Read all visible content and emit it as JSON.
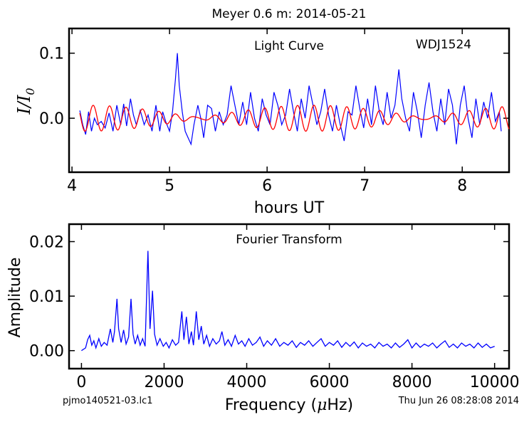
{
  "figure": {
    "title": "Meyer 0.6 m:  2014-05-21",
    "footer_left": "pjmo140521-03.lc1",
    "footer_right": "Thu Jun 26 08:28:08 2014"
  },
  "chart_data": [
    {
      "type": "line",
      "annotations": [
        "Light Curve",
        "WDJ1524"
      ],
      "xlabel": "hours UT",
      "ylabel_main": "I/I",
      "ylabel_sub": "0",
      "xlim": [
        3.97,
        8.48
      ],
      "ylim": [
        -0.083,
        0.138
      ],
      "xticks": [
        4,
        5,
        6,
        7,
        8
      ],
      "xtick_labels": [
        "4",
        "5",
        "6",
        "7",
        "8"
      ],
      "yticks": [
        0.1,
        0.0
      ],
      "ytick_labels": [
        "0.1",
        "0.0"
      ],
      "grid": false,
      "series": [
        {
          "color": "#0000ff",
          "x_start": 4.08,
          "x_end": 8.4,
          "points": [
            [
              4.08,
              0.012
            ],
            [
              4.11,
              -0.01
            ],
            [
              4.14,
              -0.025
            ],
            [
              4.17,
              0.01
            ],
            [
              4.2,
              -0.02
            ],
            [
              4.23,
              0.0
            ],
            [
              4.26,
              -0.01
            ],
            [
              4.3,
              -0.005
            ],
            [
              4.34,
              -0.015
            ],
            [
              4.38,
              0.008
            ],
            [
              4.42,
              -0.02
            ],
            [
              4.46,
              0.02
            ],
            [
              4.5,
              -0.01
            ],
            [
              4.53,
              0.022
            ],
            [
              4.56,
              -0.012
            ],
            [
              4.6,
              0.03
            ],
            [
              4.63,
              0.005
            ],
            [
              4.66,
              -0.01
            ],
            [
              4.7,
              0.012
            ],
            [
              4.74,
              -0.01
            ],
            [
              4.78,
              0.005
            ],
            [
              4.82,
              -0.02
            ],
            [
              4.86,
              0.02
            ],
            [
              4.9,
              -0.02
            ],
            [
              4.93,
              0.01
            ],
            [
              4.96,
              -0.005
            ],
            [
              5.0,
              -0.02
            ],
            [
              5.03,
              0.01
            ],
            [
              5.06,
              0.06
            ],
            [
              5.08,
              0.1
            ],
            [
              5.1,
              0.05
            ],
            [
              5.13,
              0.01
            ],
            [
              5.16,
              -0.02
            ],
            [
              5.19,
              -0.03
            ],
            [
              5.22,
              -0.04
            ],
            [
              5.25,
              -0.01
            ],
            [
              5.29,
              0.02
            ],
            [
              5.32,
              0.0
            ],
            [
              5.35,
              -0.03
            ],
            [
              5.39,
              0.02
            ],
            [
              5.43,
              0.015
            ],
            [
              5.47,
              -0.02
            ],
            [
              5.51,
              0.01
            ],
            [
              5.55,
              -0.01
            ],
            [
              5.59,
              0.005
            ],
            [
              5.63,
              0.05
            ],
            [
              5.67,
              0.02
            ],
            [
              5.71,
              -0.01
            ],
            [
              5.75,
              0.025
            ],
            [
              5.79,
              -0.01
            ],
            [
              5.83,
              0.04
            ],
            [
              5.87,
              0.0
            ],
            [
              5.91,
              -0.02
            ],
            [
              5.95,
              0.03
            ],
            [
              5.99,
              0.005
            ],
            [
              6.03,
              -0.01
            ],
            [
              6.07,
              0.04
            ],
            [
              6.11,
              0.02
            ],
            [
              6.15,
              -0.01
            ],
            [
              6.19,
              0.005
            ],
            [
              6.23,
              0.045
            ],
            [
              6.27,
              0.01
            ],
            [
              6.31,
              -0.02
            ],
            [
              6.35,
              0.03
            ],
            [
              6.39,
              0.0
            ],
            [
              6.43,
              0.05
            ],
            [
              6.47,
              0.02
            ],
            [
              6.51,
              -0.01
            ],
            [
              6.55,
              0.01
            ],
            [
              6.59,
              0.045
            ],
            [
              6.63,
              0.005
            ],
            [
              6.67,
              -0.02
            ],
            [
              6.71,
              0.02
            ],
            [
              6.75,
              -0.01
            ],
            [
              6.79,
              -0.035
            ],
            [
              6.83,
              0.01
            ],
            [
              6.87,
              0.005
            ],
            [
              6.91,
              0.05
            ],
            [
              6.95,
              0.015
            ],
            [
              6.99,
              -0.015
            ],
            [
              7.03,
              0.03
            ],
            [
              7.07,
              -0.01
            ],
            [
              7.11,
              0.05
            ],
            [
              7.15,
              0.01
            ],
            [
              7.19,
              -0.01
            ],
            [
              7.23,
              0.04
            ],
            [
              7.27,
              0.0
            ],
            [
              7.31,
              0.02
            ],
            [
              7.35,
              0.075
            ],
            [
              7.38,
              0.03
            ],
            [
              7.42,
              0.0
            ],
            [
              7.46,
              -0.02
            ],
            [
              7.5,
              0.04
            ],
            [
              7.54,
              0.01
            ],
            [
              7.58,
              -0.03
            ],
            [
              7.62,
              0.02
            ],
            [
              7.66,
              0.055
            ],
            [
              7.7,
              0.01
            ],
            [
              7.74,
              -0.02
            ],
            [
              7.78,
              0.03
            ],
            [
              7.82,
              -0.01
            ],
            [
              7.86,
              0.045
            ],
            [
              7.9,
              0.02
            ],
            [
              7.94,
              -0.04
            ],
            [
              7.98,
              0.02
            ],
            [
              8.02,
              0.05
            ],
            [
              8.06,
              0.0
            ],
            [
              8.1,
              -0.03
            ],
            [
              8.14,
              0.03
            ],
            [
              8.18,
              -0.01
            ],
            [
              8.22,
              0.025
            ],
            [
              8.26,
              0.0
            ],
            [
              8.3,
              0.04
            ],
            [
              8.34,
              -0.005
            ],
            [
              8.38,
              0.01
            ],
            [
              8.4,
              -0.02
            ]
          ]
        },
        {
          "color": "#ff0000",
          "x_start": 4.08,
          "x_end": 8.48,
          "description_free": true,
          "period_hours": 0.174,
          "amplitude": 0.02
        }
      ]
    },
    {
      "type": "line",
      "annotations": [
        "Fourier Transform"
      ],
      "xlabel_main": "Frequency (",
      "xlabel_mu": "μ",
      "xlabel_end": "Hz)",
      "ylabel": "Amplitude",
      "xlim": [
        -300,
        10350
      ],
      "ylim": [
        -0.0033,
        0.0232
      ],
      "xticks": [
        0,
        2000,
        4000,
        6000,
        8000,
        10000
      ],
      "xtick_labels": [
        "0",
        "2000",
        "4000",
        "6000",
        "8000",
        "10000"
      ],
      "yticks": [
        0.02,
        0.01,
        0.0
      ],
      "ytick_labels": [
        "0.02",
        "0.01",
        "0.00"
      ],
      "grid": false,
      "series": [
        {
          "color": "#0000ff",
          "points": [
            [
              0,
              0.0
            ],
            [
              100,
              0.0005
            ],
            [
              150,
              0.002
            ],
            [
              200,
              0.0028
            ],
            [
              250,
              0.001
            ],
            [
              300,
              0.0018
            ],
            [
              350,
              0.0005
            ],
            [
              420,
              0.0022
            ],
            [
              480,
              0.0008
            ],
            [
              550,
              0.0015
            ],
            [
              620,
              0.001
            ],
            [
              700,
              0.004
            ],
            [
              760,
              0.0015
            ],
            [
              800,
              0.0035
            ],
            [
              860,
              0.0095
            ],
            [
              900,
              0.004
            ],
            [
              960,
              0.0015
            ],
            [
              1020,
              0.0038
            ],
            [
              1080,
              0.0012
            ],
            [
              1140,
              0.0025
            ],
            [
              1200,
              0.0095
            ],
            [
              1250,
              0.003
            ],
            [
              1300,
              0.0012
            ],
            [
              1360,
              0.0028
            ],
            [
              1420,
              0.001
            ],
            [
              1480,
              0.0022
            ],
            [
              1540,
              0.0008
            ],
            [
              1610,
              0.0183
            ],
            [
              1660,
              0.004
            ],
            [
              1720,
              0.011
            ],
            [
              1770,
              0.003
            ],
            [
              1830,
              0.001
            ],
            [
              1900,
              0.0022
            ],
            [
              1980,
              0.0008
            ],
            [
              2050,
              0.0015
            ],
            [
              2120,
              0.0005
            ],
            [
              2200,
              0.002
            ],
            [
              2280,
              0.001
            ],
            [
              2350,
              0.0015
            ],
            [
              2430,
              0.0072
            ],
            [
              2480,
              0.002
            ],
            [
              2540,
              0.0062
            ],
            [
              2600,
              0.0012
            ],
            [
              2660,
              0.0035
            ],
            [
              2710,
              0.001
            ],
            [
              2780,
              0.0072
            ],
            [
              2840,
              0.002
            ],
            [
              2900,
              0.0045
            ],
            [
              2960,
              0.0012
            ],
            [
              3030,
              0.0028
            ],
            [
              3100,
              0.0008
            ],
            [
              3180,
              0.0022
            ],
            [
              3260,
              0.0012
            ],
            [
              3340,
              0.0018
            ],
            [
              3400,
              0.0035
            ],
            [
              3470,
              0.001
            ],
            [
              3550,
              0.002
            ],
            [
              3630,
              0.0008
            ],
            [
              3720,
              0.0028
            ],
            [
              3800,
              0.0012
            ],
            [
              3880,
              0.0018
            ],
            [
              3960,
              0.0008
            ],
            [
              4050,
              0.0022
            ],
            [
              4140,
              0.001
            ],
            [
              4230,
              0.0015
            ],
            [
              4320,
              0.0025
            ],
            [
              4410,
              0.0008
            ],
            [
              4500,
              0.0018
            ],
            [
              4600,
              0.001
            ],
            [
              4700,
              0.0022
            ],
            [
              4800,
              0.0008
            ],
            [
              4900,
              0.0015
            ],
            [
              5000,
              0.001
            ],
            [
              5100,
              0.0018
            ],
            [
              5200,
              0.0006
            ],
            [
              5300,
              0.0015
            ],
            [
              5400,
              0.001
            ],
            [
              5500,
              0.0018
            ],
            [
              5600,
              0.0008
            ],
            [
              5700,
              0.0015
            ],
            [
              5800,
              0.0022
            ],
            [
              5900,
              0.0008
            ],
            [
              6000,
              0.0015
            ],
            [
              6100,
              0.001
            ],
            [
              6200,
              0.0018
            ],
            [
              6300,
              0.0006
            ],
            [
              6400,
              0.0015
            ],
            [
              6500,
              0.0008
            ],
            [
              6600,
              0.0016
            ],
            [
              6700,
              0.0005
            ],
            [
              6800,
              0.0014
            ],
            [
              6900,
              0.0008
            ],
            [
              7000,
              0.0012
            ],
            [
              7100,
              0.0005
            ],
            [
              7200,
              0.0015
            ],
            [
              7300,
              0.0008
            ],
            [
              7400,
              0.0012
            ],
            [
              7500,
              0.0005
            ],
            [
              7600,
              0.0014
            ],
            [
              7700,
              0.0006
            ],
            [
              7800,
              0.0012
            ],
            [
              7900,
              0.002
            ],
            [
              8000,
              0.0005
            ],
            [
              8100,
              0.0014
            ],
            [
              8200,
              0.0006
            ],
            [
              8300,
              0.0012
            ],
            [
              8400,
              0.0008
            ],
            [
              8500,
              0.0014
            ],
            [
              8600,
              0.0005
            ],
            [
              8700,
              0.0012
            ],
            [
              8800,
              0.0018
            ],
            [
              8900,
              0.0006
            ],
            [
              9000,
              0.0012
            ],
            [
              9100,
              0.0005
            ],
            [
              9200,
              0.0014
            ],
            [
              9300,
              0.0008
            ],
            [
              9400,
              0.0012
            ],
            [
              9500,
              0.0005
            ],
            [
              9600,
              0.0014
            ],
            [
              9700,
              0.0006
            ],
            [
              9800,
              0.0012
            ],
            [
              9900,
              0.0005
            ],
            [
              10000,
              0.0008
            ]
          ]
        }
      ]
    }
  ]
}
